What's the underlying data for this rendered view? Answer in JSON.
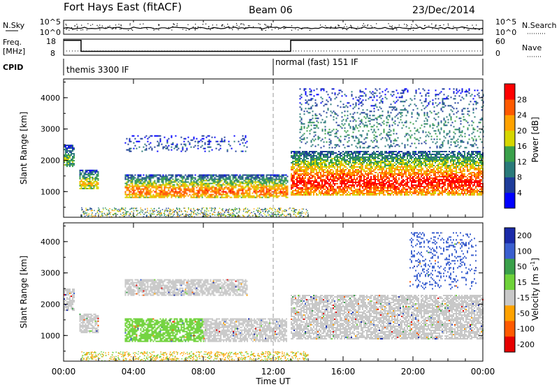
{
  "header": {
    "radar": "Fort Hays East (fitACF)",
    "beam": "Beam 06",
    "date": "23/Dec/2014"
  },
  "sky_panel": {
    "left_label": "N.Sky",
    "right_label": "N.Search",
    "ticks_left": [
      "10^5",
      "10^0"
    ],
    "ticks_right": [
      "10^5",
      "10^0"
    ]
  },
  "freq_panel": {
    "left_label_1": "Freq.",
    "left_label_2": "[MHz]",
    "ticks_left": [
      "18",
      "8"
    ],
    "right_label": "Nave",
    "ticks_right": [
      "60",
      "0"
    ],
    "freq_steps": [
      {
        "t0": 0,
        "t1": 1.0,
        "f": 17.2
      },
      {
        "t0": 1.0,
        "t1": 13.0,
        "f": 10.4
      },
      {
        "t0": 13.0,
        "t1": 24.0,
        "f": 17.2
      }
    ]
  },
  "cpid_panel": {
    "label": "CPID",
    "segments": [
      {
        "t": 0,
        "name": "themis 3300 IF"
      },
      {
        "t": 12.0,
        "name": "normal (fast) 151 IF"
      }
    ]
  },
  "chart_data": [
    {
      "type": "heatmap",
      "name": "power",
      "ylabel": "Slant Range [km]",
      "yticks": [
        "1000",
        "2000",
        "3000",
        "4000"
      ],
      "ylim": [
        180,
        4600
      ],
      "xlim": [
        0,
        24
      ],
      "colorbar": {
        "label": "Power [dB]",
        "ticks": [
          "4",
          "8",
          "12",
          "16",
          "20",
          "24",
          "28"
        ],
        "colors": [
          "#0000ff",
          "#1e3c9a",
          "#2a7a7a",
          "#3aa04a",
          "#d6d600",
          "#ffa200",
          "#ff5a00",
          "#ff0000"
        ]
      },
      "bands": [
        {
          "t0": 0.0,
          "t1": 0.6,
          "r0": 1800,
          "r1": 2500,
          "level": 3
        },
        {
          "t0": 0.9,
          "t1": 2.0,
          "r0": 1100,
          "r1": 1700,
          "level": 4
        },
        {
          "t0": 3.5,
          "t1": 12.8,
          "r0": 800,
          "r1": 1550,
          "level": 5
        },
        {
          "t0": 3.5,
          "t1": 10.5,
          "r0": 2300,
          "r1": 2800,
          "level": 1
        },
        {
          "t0": 13.0,
          "t1": 24.0,
          "r0": 900,
          "r1": 2300,
          "level": 6
        },
        {
          "t0": 13.5,
          "t1": 24.0,
          "r0": 2400,
          "r1": 4300,
          "level": 2
        }
      ]
    },
    {
      "type": "heatmap",
      "name": "velocity",
      "ylabel": "Slant Range [km]",
      "yticks": [
        "1000",
        "2000",
        "3000",
        "4000"
      ],
      "ylim": [
        180,
        4600
      ],
      "xlim": [
        0,
        24
      ],
      "colorbar": {
        "label": "Velocity [m s^-1]",
        "ticks": [
          "200",
          "100",
          "50",
          "15",
          "-15",
          "-50",
          "-100",
          "-200"
        ],
        "colors": [
          "#1a2aa8",
          "#3a5fcf",
          "#3aa04a",
          "#6fd23a",
          "#c8c8c8",
          "#ffa200",
          "#ff5a00",
          "#e60000"
        ]
      },
      "bands": [
        {
          "t0": 0.0,
          "t1": 0.6,
          "r0": 1800,
          "r1": 2500,
          "color": "#c8c8c8"
        },
        {
          "t0": 0.9,
          "t1": 2.0,
          "r0": 1100,
          "r1": 1700,
          "color": "#c8c8c8"
        },
        {
          "t0": 3.5,
          "t1": 8.0,
          "r0": 800,
          "r1": 1550,
          "color": "#6fd23a"
        },
        {
          "t0": 8.0,
          "t1": 12.8,
          "r0": 800,
          "r1": 1550,
          "color": "#c8c8c8"
        },
        {
          "t0": 3.5,
          "t1": 10.5,
          "r0": 2300,
          "r1": 2800,
          "color": "#c8c8c8"
        },
        {
          "t0": 13.0,
          "t1": 24.0,
          "r0": 900,
          "r1": 2300,
          "color": "#c8c8c8"
        },
        {
          "t0": 19.8,
          "t1": 23.6,
          "r0": 2500,
          "r1": 4300,
          "color": "#3a5fcf"
        }
      ]
    }
  ],
  "x_axis": {
    "ticks": [
      "00:00",
      "04:00",
      "08:00",
      "12:00",
      "16:00",
      "20:00",
      "00:00"
    ],
    "xlabel": "Time UT"
  }
}
